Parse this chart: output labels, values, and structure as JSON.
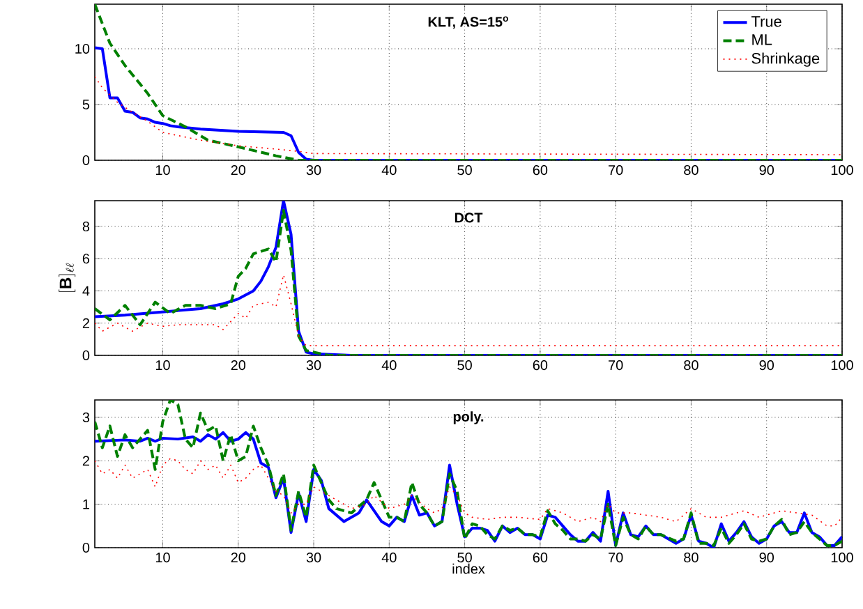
{
  "chart_data": [
    {
      "type": "line",
      "title": "KLT, AS=15$^{o}$",
      "xlim": [
        1,
        100
      ],
      "ylim": [
        0,
        14
      ],
      "xticks": [
        10,
        20,
        30,
        40,
        50,
        60,
        70,
        80,
        90,
        100
      ],
      "yticks": [
        0,
        5,
        10
      ],
      "grid": true,
      "legend": "top right",
      "marker": "none",
      "series": [
        {
          "name": "True",
          "color": "#0000ff",
          "line_style": "solid",
          "x": [
            1,
            2,
            3,
            4,
            5,
            6,
            7,
            8,
            9,
            10,
            11,
            12,
            15,
            20,
            26,
            27,
            28,
            29,
            30,
            100
          ],
          "values": [
            10.1,
            10,
            5.6,
            5.6,
            4.4,
            4.3,
            3.8,
            3.7,
            3.4,
            3.3,
            3.1,
            3.0,
            2.8,
            2.6,
            2.5,
            2.2,
            0.7,
            0.1,
            0,
            0
          ]
        },
        {
          "name": "ML",
          "color": "#008000",
          "line_style": "dashed",
          "x": [
            1,
            3,
            5,
            8,
            10,
            13,
            16,
            20,
            25,
            28,
            30,
            100
          ],
          "values": [
            14,
            10.5,
            8.5,
            6,
            4,
            3,
            1.8,
            1.2,
            0.4,
            0,
            0,
            0
          ]
        },
        {
          "name": "Shrinkage",
          "color": "#ff0000",
          "line_style": "dotted",
          "x": [
            1,
            2,
            4,
            6,
            8,
            10,
            15,
            20,
            25,
            28,
            30,
            100
          ],
          "values": [
            7.5,
            6.5,
            5.2,
            4.3,
            3.5,
            2.5,
            1.8,
            1.3,
            1.0,
            0.8,
            0.6,
            0.5
          ]
        }
      ]
    },
    {
      "type": "line",
      "title": "DCT",
      "ylabel": "[\\mathbf{B}]_{\\ell\\ell}",
      "xlim": [
        1,
        100
      ],
      "ylim": [
        0,
        9.6
      ],
      "xticks": [
        10,
        20,
        30,
        40,
        50,
        60,
        70,
        80,
        90,
        100
      ],
      "yticks": [
        0,
        2,
        4,
        6,
        8
      ],
      "grid": true,
      "marker": "none",
      "series": [
        {
          "color": "#0000ff",
          "line_style": "solid",
          "x": [
            1,
            5,
            10,
            15,
            18,
            20,
            22,
            23,
            24,
            25,
            26,
            27,
            28,
            29,
            30,
            35,
            100
          ],
          "values": [
            2.4,
            2.5,
            2.7,
            2.9,
            3.2,
            3.5,
            4.0,
            4.6,
            5.5,
            6.7,
            9.6,
            7.5,
            1.5,
            0.2,
            0.1,
            0,
            0
          ]
        },
        {
          "color": "#008000",
          "line_style": "dashed",
          "x": [
            1,
            3,
            5,
            7,
            9,
            11,
            13,
            15,
            17,
            19,
            20,
            21,
            22,
            24,
            25,
            26,
            27,
            28,
            29,
            30,
            32,
            100
          ],
          "values": [
            2.9,
            2.2,
            3.1,
            1.9,
            3.3,
            2.6,
            3.1,
            3.1,
            2.9,
            3.2,
            4.9,
            5.4,
            6.3,
            6.6,
            5.8,
            9.0,
            6.5,
            1.2,
            0.3,
            0.2,
            0,
            0
          ]
        },
        {
          "color": "#ff0000",
          "line_style": "dotted",
          "x": [
            1,
            2,
            4,
            6,
            8,
            10,
            12,
            15,
            17,
            18,
            19,
            20,
            21,
            22,
            24,
            25,
            26,
            27,
            28,
            29,
            30,
            100
          ],
          "values": [
            2.0,
            1.5,
            2.0,
            1.5,
            2.0,
            1.8,
            1.9,
            1.9,
            1.9,
            1.6,
            2.1,
            2.6,
            2.3,
            3.1,
            3.3,
            3.0,
            5.0,
            3.2,
            1.2,
            0.6,
            0.6,
            0.6
          ]
        }
      ]
    },
    {
      "type": "line",
      "title": "poly.",
      "xlabel": "index",
      "xlim": [
        1,
        100
      ],
      "ylim": [
        0,
        3.4
      ],
      "xticks": [
        10,
        20,
        30,
        40,
        50,
        60,
        70,
        80,
        90,
        100
      ],
      "yticks": [
        0,
        1,
        2,
        3
      ],
      "grid": true,
      "marker": "none",
      "series": [
        {
          "color": "#0000ff",
          "line_style": "solid",
          "x": [
            1,
            5,
            7,
            8,
            9,
            10,
            12,
            14,
            15,
            16,
            17,
            18,
            19,
            20,
            21,
            22,
            23,
            24,
            25,
            26,
            27,
            28,
            29,
            30,
            31,
            32,
            34,
            36,
            37,
            39,
            40,
            41,
            42,
            43,
            44,
            45,
            46,
            47,
            48,
            49,
            50,
            51,
            52,
            53,
            54,
            55,
            56,
            57,
            58,
            59,
            60,
            61,
            62,
            63,
            64,
            65,
            66,
            67,
            68,
            69,
            70,
            71,
            72,
            73,
            74,
            75,
            76,
            78,
            79,
            80,
            81,
            82,
            83,
            84,
            85,
            86,
            87,
            88,
            89,
            90,
            91,
            92,
            93,
            94,
            95,
            96,
            97,
            98,
            99,
            100
          ],
          "values": [
            2.45,
            2.48,
            2.45,
            2.52,
            2.45,
            2.52,
            2.5,
            2.55,
            2.45,
            2.6,
            2.5,
            2.65,
            2.45,
            2.5,
            2.65,
            2.5,
            1.95,
            1.85,
            1.15,
            1.6,
            0.35,
            1.25,
            0.6,
            1.8,
            1.55,
            0.9,
            0.6,
            0.8,
            1.1,
            0.6,
            0.5,
            0.7,
            0.6,
            1.2,
            0.75,
            0.8,
            0.5,
            0.6,
            1.9,
            1.0,
            0.25,
            0.45,
            0.45,
            0.4,
            0.15,
            0.5,
            0.35,
            0.45,
            0.3,
            0.3,
            0.2,
            0.75,
            0.7,
            0.5,
            0.3,
            0.15,
            0.15,
            0.35,
            0.15,
            1.3,
            0.05,
            0.8,
            0.3,
            0.25,
            0.5,
            0.3,
            0.3,
            0.1,
            0.2,
            0.75,
            0.15,
            0.1,
            0,
            0.55,
            0.15,
            0.35,
            0.6,
            0.25,
            0.1,
            0.2,
            0.5,
            0.6,
            0.35,
            0.35,
            0.8,
            0.35,
            0.25,
            0.05,
            0.05,
            0.25
          ]
        },
        {
          "color": "#008000",
          "line_style": "dashed",
          "x": [
            1,
            2,
            3,
            4,
            5,
            6,
            7,
            8,
            9,
            10,
            11,
            12,
            13,
            14,
            15,
            16,
            17,
            18,
            19,
            20,
            21,
            22,
            23,
            24,
            25,
            26,
            27,
            28,
            29,
            30,
            31,
            32,
            33,
            35,
            37,
            38,
            40,
            41,
            42,
            43,
            44,
            45,
            46,
            47,
            48,
            49,
            50,
            51,
            52,
            53,
            54,
            55,
            56,
            57,
            58,
            59,
            60,
            61,
            62,
            63,
            64,
            65,
            66,
            67,
            68,
            69,
            70,
            71,
            72,
            73,
            74,
            75,
            76,
            78,
            79,
            80,
            81,
            82,
            83,
            84,
            85,
            86,
            87,
            88,
            89,
            90,
            91,
            92,
            93,
            94,
            95,
            96,
            97,
            98,
            99,
            100
          ],
          "values": [
            2.9,
            2.3,
            2.8,
            2.1,
            2.6,
            2.3,
            2.5,
            2.7,
            1.8,
            2.9,
            3.4,
            3.3,
            2.5,
            2.3,
            3.1,
            2.7,
            2.8,
            2.0,
            2.6,
            2.0,
            2.1,
            2.8,
            2.3,
            1.9,
            1.2,
            1.7,
            0.4,
            1.3,
            0.7,
            1.9,
            1.5,
            1.1,
            0.9,
            0.8,
            1.1,
            1.5,
            0.7,
            0.7,
            0.6,
            1.5,
            1.0,
            0.8,
            0.5,
            0.6,
            1.7,
            1.3,
            0.2,
            0.55,
            0.5,
            0.3,
            0.2,
            0.5,
            0.4,
            0.45,
            0.3,
            0.3,
            0.25,
            0.85,
            0.55,
            0.4,
            0.2,
            0.2,
            0.15,
            0.3,
            0.2,
            1.0,
            0.05,
            0.7,
            0.3,
            0.2,
            0.5,
            0.3,
            0.3,
            0.15,
            0.2,
            0.8,
            0.1,
            0.1,
            0.05,
            0.45,
            0.1,
            0.3,
            0.55,
            0.2,
            0.15,
            0.2,
            0.5,
            0.65,
            0.3,
            0.35,
            0.6,
            0.35,
            0.2,
            0.05,
            0.05,
            0.15
          ]
        },
        {
          "color": "#ff0000",
          "line_style": "dotted",
          "x": [
            1,
            2,
            3,
            4,
            5,
            6,
            7,
            8,
            9,
            10,
            11,
            12,
            13,
            14,
            15,
            16,
            17,
            18,
            19,
            20,
            21,
            22,
            23,
            24,
            25,
            26,
            27,
            28,
            29,
            30,
            31,
            33,
            35,
            37,
            38,
            40,
            42,
            43,
            45,
            46,
            47,
            48,
            49,
            50,
            51,
            53,
            55,
            57,
            60,
            61,
            63,
            65,
            67,
            68,
            69,
            70,
            72,
            74,
            76,
            78,
            80,
            82,
            84,
            86,
            87,
            89,
            92,
            94,
            96,
            98,
            99,
            100
          ],
          "values": [
            2.0,
            1.7,
            1.8,
            1.6,
            1.9,
            1.6,
            1.7,
            1.8,
            1.4,
            1.9,
            2.05,
            2.0,
            1.8,
            1.7,
            2.0,
            1.8,
            1.9,
            1.6,
            1.9,
            1.5,
            1.6,
            1.8,
            1.9,
            1.6,
            1.3,
            1.2,
            0.8,
            1.0,
            1.0,
            1.4,
            1.3,
            1.1,
            0.9,
            1.0,
            1.2,
            0.9,
            1.0,
            1.2,
            0.9,
            0.8,
            0.9,
            1.4,
            1.2,
            0.8,
            0.7,
            0.65,
            0.7,
            0.7,
            0.65,
            0.9,
            0.8,
            0.6,
            0.7,
            0.6,
            1.0,
            0.8,
            0.8,
            0.75,
            0.7,
            0.6,
            0.9,
            0.7,
            0.7,
            0.8,
            0.85,
            0.7,
            0.85,
            0.8,
            0.75,
            0.5,
            0.5,
            0.7
          ]
        }
      ]
    }
  ]
}
